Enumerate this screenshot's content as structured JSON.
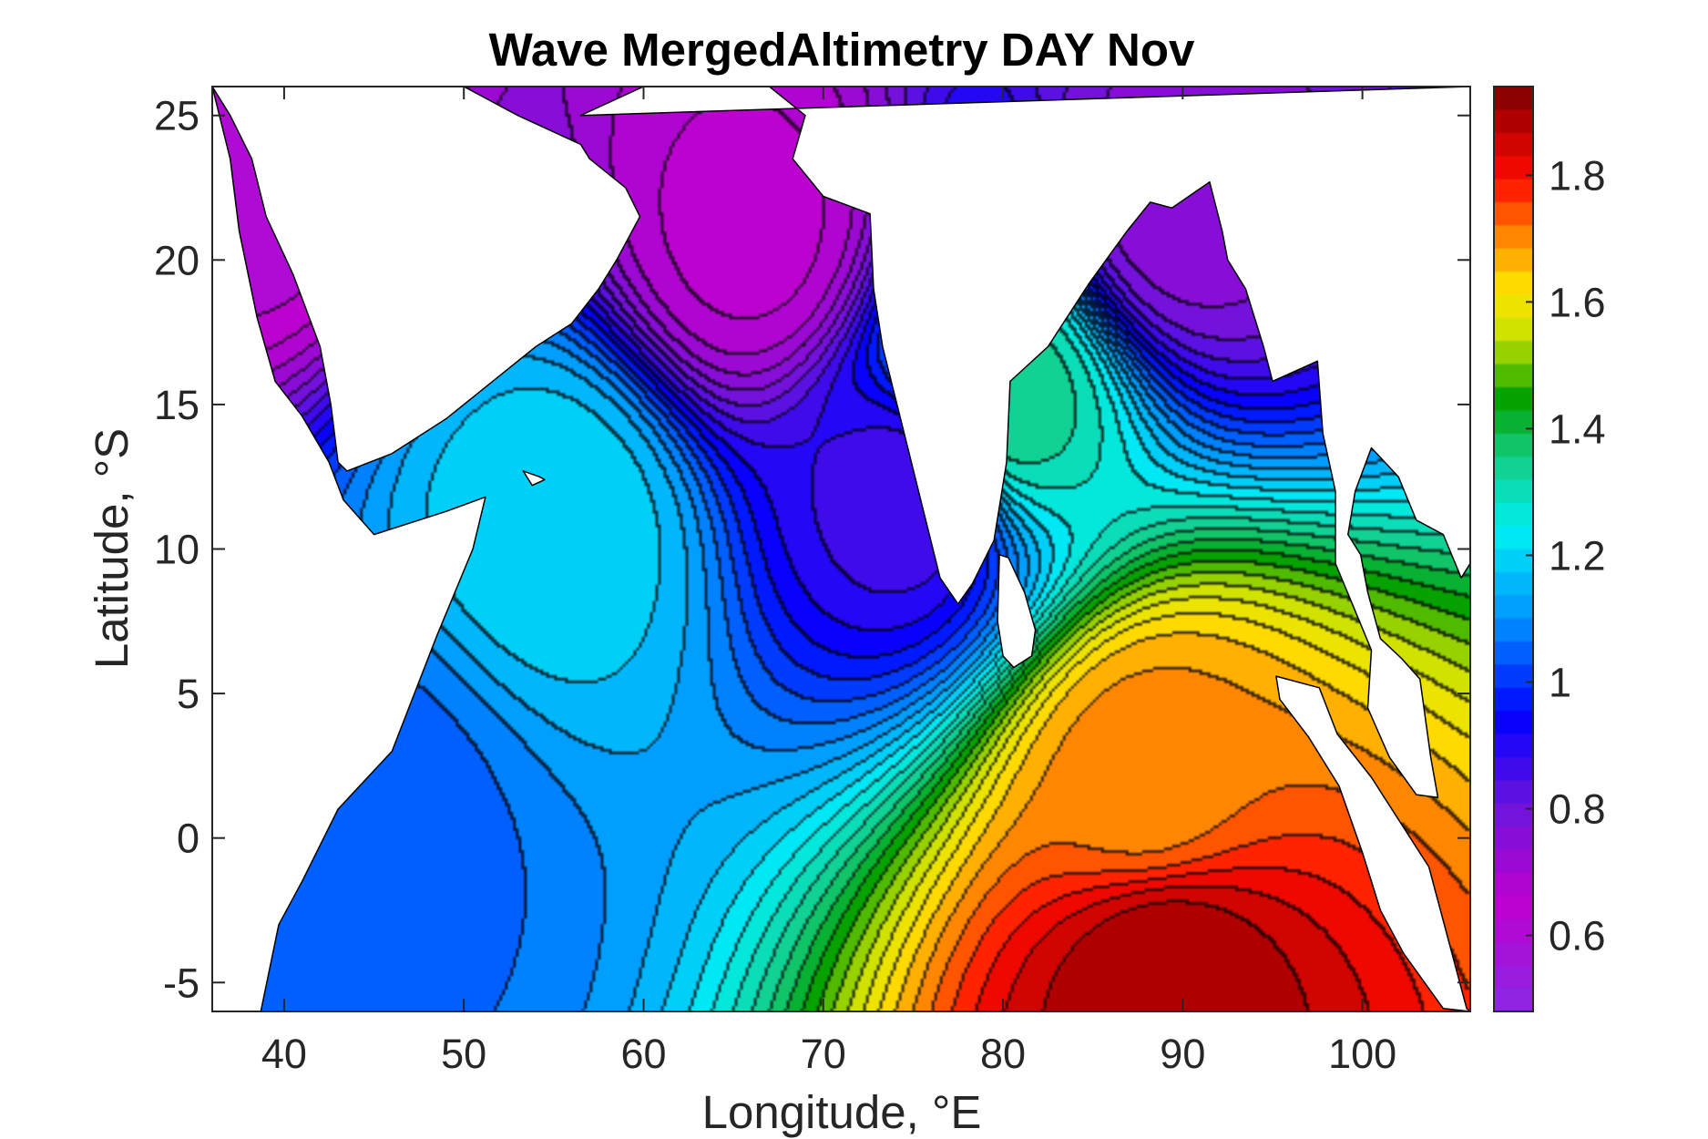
{
  "figure": {
    "title": "Wave MergedAltimetry DAY Nov",
    "xlabel": "Longitude, °E",
    "ylabel": "Latitude, °S"
  },
  "chart_data": {
    "type": "heatmap",
    "title": "Wave MergedAltimetry DAY Nov",
    "xlabel": "Longitude, °E",
    "ylabel": "Latitude, °S",
    "xlim": [
      36,
      106
    ],
    "ylim": [
      -6,
      26
    ],
    "x_ticks": [
      40,
      50,
      60,
      70,
      80,
      90,
      100
    ],
    "x_tick_labels": [
      "40",
      "50",
      "60",
      "70",
      "80",
      "90",
      "100"
    ],
    "y_ticks": [
      -5,
      0,
      5,
      10,
      15,
      20,
      25
    ],
    "y_tick_labels": [
      "-5",
      "0",
      "5",
      "10",
      "15",
      "20",
      "25"
    ],
    "colorbar": {
      "range": [
        0.48,
        1.94
      ],
      "ticks": [
        0.6,
        0.8,
        1.0,
        1.2,
        1.4,
        1.6,
        1.8
      ],
      "tick_labels": [
        "0.6",
        "0.8",
        "1",
        "1.2",
        "1.4",
        "1.6",
        "1.8"
      ],
      "colormap": "jet-like (purple → blue → cyan → green → yellow → orange → red → dark red)",
      "levels": 40
    },
    "contour_lines": true,
    "land_mask": "white",
    "field_features": [
      {
        "description": "maximum",
        "lon": 89,
        "lat": -5,
        "value": 1.9
      },
      {
        "description": "maximum",
        "lon": 88,
        "lat": 2,
        "value": 1.7
      },
      {
        "description": "local maximum",
        "lon": 55,
        "lat": 11,
        "value": 1.2
      },
      {
        "description": "minimum",
        "lon": 75,
        "lat": 12,
        "value": 0.85
      },
      {
        "description": "minimum",
        "lon": 66,
        "lat": 21,
        "value": 0.65
      },
      {
        "description": "minimum",
        "lon": 90,
        "lat": 22,
        "value": 0.75
      },
      {
        "description": "minimum",
        "lon": 38,
        "lat": 24,
        "value": 0.6
      },
      {
        "description": "local minimum",
        "lon": 45,
        "lat": 1,
        "value": 1.05
      },
      {
        "description": "maximum",
        "lon": 80,
        "lat": 15,
        "value": 1.35
      }
    ]
  }
}
